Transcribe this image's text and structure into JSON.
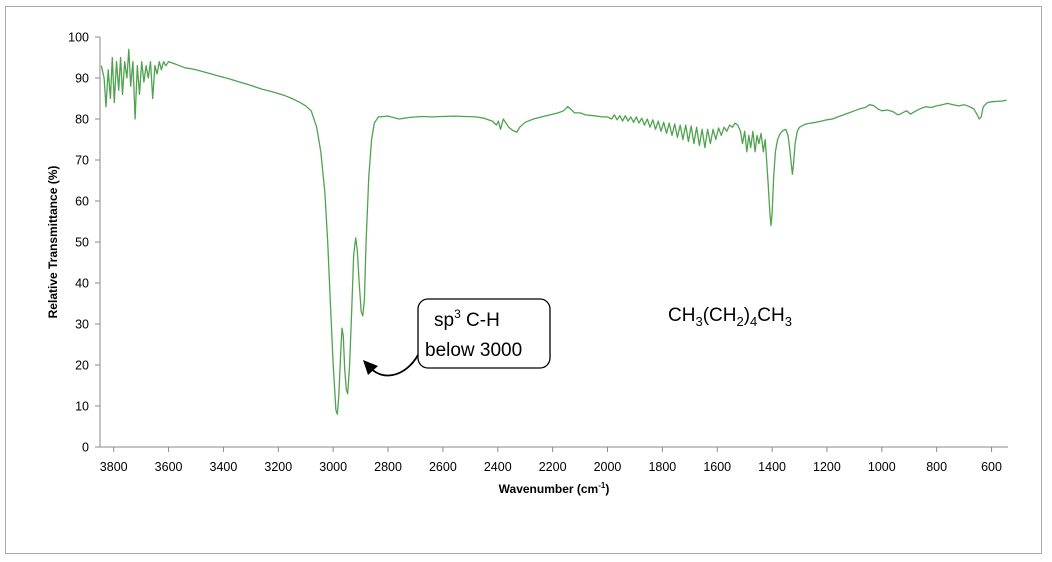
{
  "chart_data": {
    "type": "line",
    "title": "",
    "xlabel_main": "Wavenumber (cm",
    "xlabel_sup": "-1",
    "xlabel_end": ")",
    "ylabel": "Relative Transmittance (%)",
    "xlim": [
      3850,
      540
    ],
    "ylim": [
      0,
      100
    ],
    "x_ticks": [
      3800,
      3600,
      3400,
      3200,
      3000,
      2800,
      2600,
      2400,
      2200,
      2000,
      1800,
      1600,
      1400,
      1200,
      1000,
      800,
      600
    ],
    "y_ticks": [
      0,
      10,
      20,
      30,
      40,
      50,
      60,
      70,
      80,
      90,
      100
    ],
    "grid": false,
    "line_color": "#4fa34f",
    "series": [
      {
        "values": [
          [
            3845,
            93
          ],
          [
            3835,
            90
          ],
          [
            3828,
            83
          ],
          [
            3820,
            92
          ],
          [
            3812,
            85
          ],
          [
            3805,
            95
          ],
          [
            3798,
            84
          ],
          [
            3790,
            94
          ],
          [
            3782,
            87
          ],
          [
            3775,
            95
          ],
          [
            3768,
            86
          ],
          [
            3760,
            94
          ],
          [
            3752,
            90
          ],
          [
            3745,
            97
          ],
          [
            3738,
            88
          ],
          [
            3730,
            94
          ],
          [
            3722,
            80
          ],
          [
            3714,
            93
          ],
          [
            3706,
            86
          ],
          [
            3698,
            94
          ],
          [
            3690,
            89
          ],
          [
            3682,
            93
          ],
          [
            3674,
            90
          ],
          [
            3666,
            94
          ],
          [
            3658,
            85
          ],
          [
            3650,
            93
          ],
          [
            3642,
            91
          ],
          [
            3634,
            94
          ],
          [
            3626,
            92
          ],
          [
            3618,
            94
          ],
          [
            3610,
            93
          ],
          [
            3600,
            94
          ],
          [
            3580,
            93.5
          ],
          [
            3560,
            93
          ],
          [
            3540,
            92.5
          ],
          [
            3520,
            92.3
          ],
          [
            3500,
            92
          ],
          [
            3460,
            91.3
          ],
          [
            3420,
            90.5
          ],
          [
            3380,
            89.8
          ],
          [
            3340,
            89
          ],
          [
            3300,
            88.2
          ],
          [
            3260,
            87.3
          ],
          [
            3220,
            86.6
          ],
          [
            3180,
            85.8
          ],
          [
            3150,
            85
          ],
          [
            3120,
            84
          ],
          [
            3100,
            83.2
          ],
          [
            3080,
            82
          ],
          [
            3060,
            78
          ],
          [
            3045,
            72
          ],
          [
            3030,
            62
          ],
          [
            3020,
            50
          ],
          [
            3010,
            35
          ],
          [
            3000,
            20
          ],
          [
            2990,
            9
          ],
          [
            2985,
            8
          ],
          [
            2980,
            12
          ],
          [
            2972,
            24
          ],
          [
            2968,
            29
          ],
          [
            2963,
            27
          ],
          [
            2958,
            19
          ],
          [
            2952,
            14
          ],
          [
            2947,
            13
          ],
          [
            2940,
            20
          ],
          [
            2932,
            34
          ],
          [
            2925,
            47
          ],
          [
            2918,
            51
          ],
          [
            2912,
            48
          ],
          [
            2905,
            40
          ],
          [
            2898,
            33
          ],
          [
            2892,
            32
          ],
          [
            2886,
            36
          ],
          [
            2880,
            50
          ],
          [
            2870,
            66
          ],
          [
            2860,
            75
          ],
          [
            2850,
            79
          ],
          [
            2835,
            80.5
          ],
          [
            2800,
            80.7
          ],
          [
            2760,
            80
          ],
          [
            2720,
            80.4
          ],
          [
            2680,
            80.6
          ],
          [
            2640,
            80.5
          ],
          [
            2600,
            80.6
          ],
          [
            2560,
            80.7
          ],
          [
            2520,
            80.6
          ],
          [
            2480,
            80.5
          ],
          [
            2450,
            80.2
          ],
          [
            2420,
            79.5
          ],
          [
            2405,
            78.5
          ],
          [
            2398,
            79.5
          ],
          [
            2390,
            77.5
          ],
          [
            2380,
            80
          ],
          [
            2370,
            79
          ],
          [
            2360,
            78
          ],
          [
            2345,
            77.2
          ],
          [
            2330,
            76.8
          ],
          [
            2320,
            78
          ],
          [
            2300,
            79.2
          ],
          [
            2270,
            80
          ],
          [
            2240,
            80.5
          ],
          [
            2210,
            81
          ],
          [
            2180,
            81.5
          ],
          [
            2160,
            82
          ],
          [
            2145,
            83
          ],
          [
            2135,
            82.5
          ],
          [
            2120,
            81.5
          ],
          [
            2100,
            81.5
          ],
          [
            2080,
            81
          ],
          [
            2050,
            80.8
          ],
          [
            2020,
            80.5
          ],
          [
            2000,
            80.5
          ],
          [
            1985,
            80
          ],
          [
            1975,
            81
          ],
          [
            1965,
            79.8
          ],
          [
            1955,
            80.8
          ],
          [
            1945,
            79.5
          ],
          [
            1935,
            80.8
          ],
          [
            1925,
            79.5
          ],
          [
            1915,
            80.5
          ],
          [
            1905,
            79.2
          ],
          [
            1895,
            80.5
          ],
          [
            1885,
            79
          ],
          [
            1875,
            80.2
          ],
          [
            1865,
            78.5
          ],
          [
            1855,
            80
          ],
          [
            1845,
            78
          ],
          [
            1835,
            79.8
          ],
          [
            1825,
            77.5
          ],
          [
            1815,
            79.5
          ],
          [
            1805,
            77
          ],
          [
            1795,
            79.2
          ],
          [
            1785,
            76.5
          ],
          [
            1775,
            79
          ],
          [
            1765,
            76
          ],
          [
            1755,
            78.8
          ],
          [
            1745,
            75.5
          ],
          [
            1735,
            78.5
          ],
          [
            1725,
            75
          ],
          [
            1715,
            78.5
          ],
          [
            1705,
            74.5
          ],
          [
            1695,
            78.3
          ],
          [
            1685,
            74
          ],
          [
            1675,
            78
          ],
          [
            1665,
            73.5
          ],
          [
            1655,
            77.5
          ],
          [
            1645,
            73
          ],
          [
            1635,
            77.5
          ],
          [
            1625,
            74
          ],
          [
            1615,
            77.5
          ],
          [
            1605,
            75
          ],
          [
            1595,
            77.8
          ],
          [
            1585,
            76
          ],
          [
            1575,
            78
          ],
          [
            1565,
            77
          ],
          [
            1555,
            78.5
          ],
          [
            1545,
            78
          ],
          [
            1535,
            79
          ],
          [
            1525,
            78.5
          ],
          [
            1515,
            77
          ],
          [
            1508,
            74
          ],
          [
            1500,
            77
          ],
          [
            1492,
            72
          ],
          [
            1485,
            76
          ],
          [
            1478,
            73
          ],
          [
            1470,
            77
          ],
          [
            1462,
            72
          ],
          [
            1455,
            76
          ],
          [
            1448,
            74
          ],
          [
            1440,
            76.5
          ],
          [
            1432,
            72
          ],
          [
            1425,
            75
          ],
          [
            1420,
            70
          ],
          [
            1414,
            64
          ],
          [
            1408,
            57
          ],
          [
            1404,
            54
          ],
          [
            1400,
            57
          ],
          [
            1394,
            66
          ],
          [
            1388,
            72
          ],
          [
            1380,
            75
          ],
          [
            1370,
            76.5
          ],
          [
            1360,
            77.2
          ],
          [
            1350,
            77.5
          ],
          [
            1342,
            76
          ],
          [
            1336,
            73
          ],
          [
            1330,
            69
          ],
          [
            1326,
            66.5
          ],
          [
            1322,
            69
          ],
          [
            1316,
            74
          ],
          [
            1308,
            77
          ],
          [
            1300,
            78
          ],
          [
            1280,
            78.7
          ],
          [
            1260,
            79
          ],
          [
            1240,
            79.2
          ],
          [
            1220,
            79.5
          ],
          [
            1200,
            79.8
          ],
          [
            1180,
            80
          ],
          [
            1160,
            80.5
          ],
          [
            1140,
            81
          ],
          [
            1120,
            81.5
          ],
          [
            1100,
            82
          ],
          [
            1080,
            82.5
          ],
          [
            1060,
            82.8
          ],
          [
            1045,
            83.5
          ],
          [
            1030,
            83.3
          ],
          [
            1015,
            82.5
          ],
          [
            1000,
            82
          ],
          [
            980,
            82.2
          ],
          [
            960,
            81.8
          ],
          [
            940,
            81
          ],
          [
            925,
            81.5
          ],
          [
            910,
            82
          ],
          [
            895,
            81.2
          ],
          [
            880,
            81.8
          ],
          [
            860,
            82.5
          ],
          [
            840,
            83
          ],
          [
            820,
            82.8
          ],
          [
            800,
            83.2
          ],
          [
            780,
            83.5
          ],
          [
            760,
            83.8
          ],
          [
            740,
            83.5
          ],
          [
            720,
            83.2
          ],
          [
            700,
            83.5
          ],
          [
            680,
            83
          ],
          [
            665,
            82.5
          ],
          [
            652,
            81
          ],
          [
            645,
            80
          ],
          [
            638,
            80.5
          ],
          [
            630,
            83
          ],
          [
            615,
            84
          ],
          [
            600,
            84.2
          ],
          [
            580,
            84.3
          ],
          [
            560,
            84.4
          ],
          [
            545,
            84.6
          ]
        ]
      }
    ],
    "annotation": {
      "line1_base": "sp",
      "line1_sup": "3",
      "line1_end": " C-H",
      "line2": "below 3000"
    },
    "formula": {
      "parts": [
        "CH",
        "3",
        "(CH",
        "2",
        ")",
        "4",
        "CH",
        "3"
      ]
    }
  }
}
